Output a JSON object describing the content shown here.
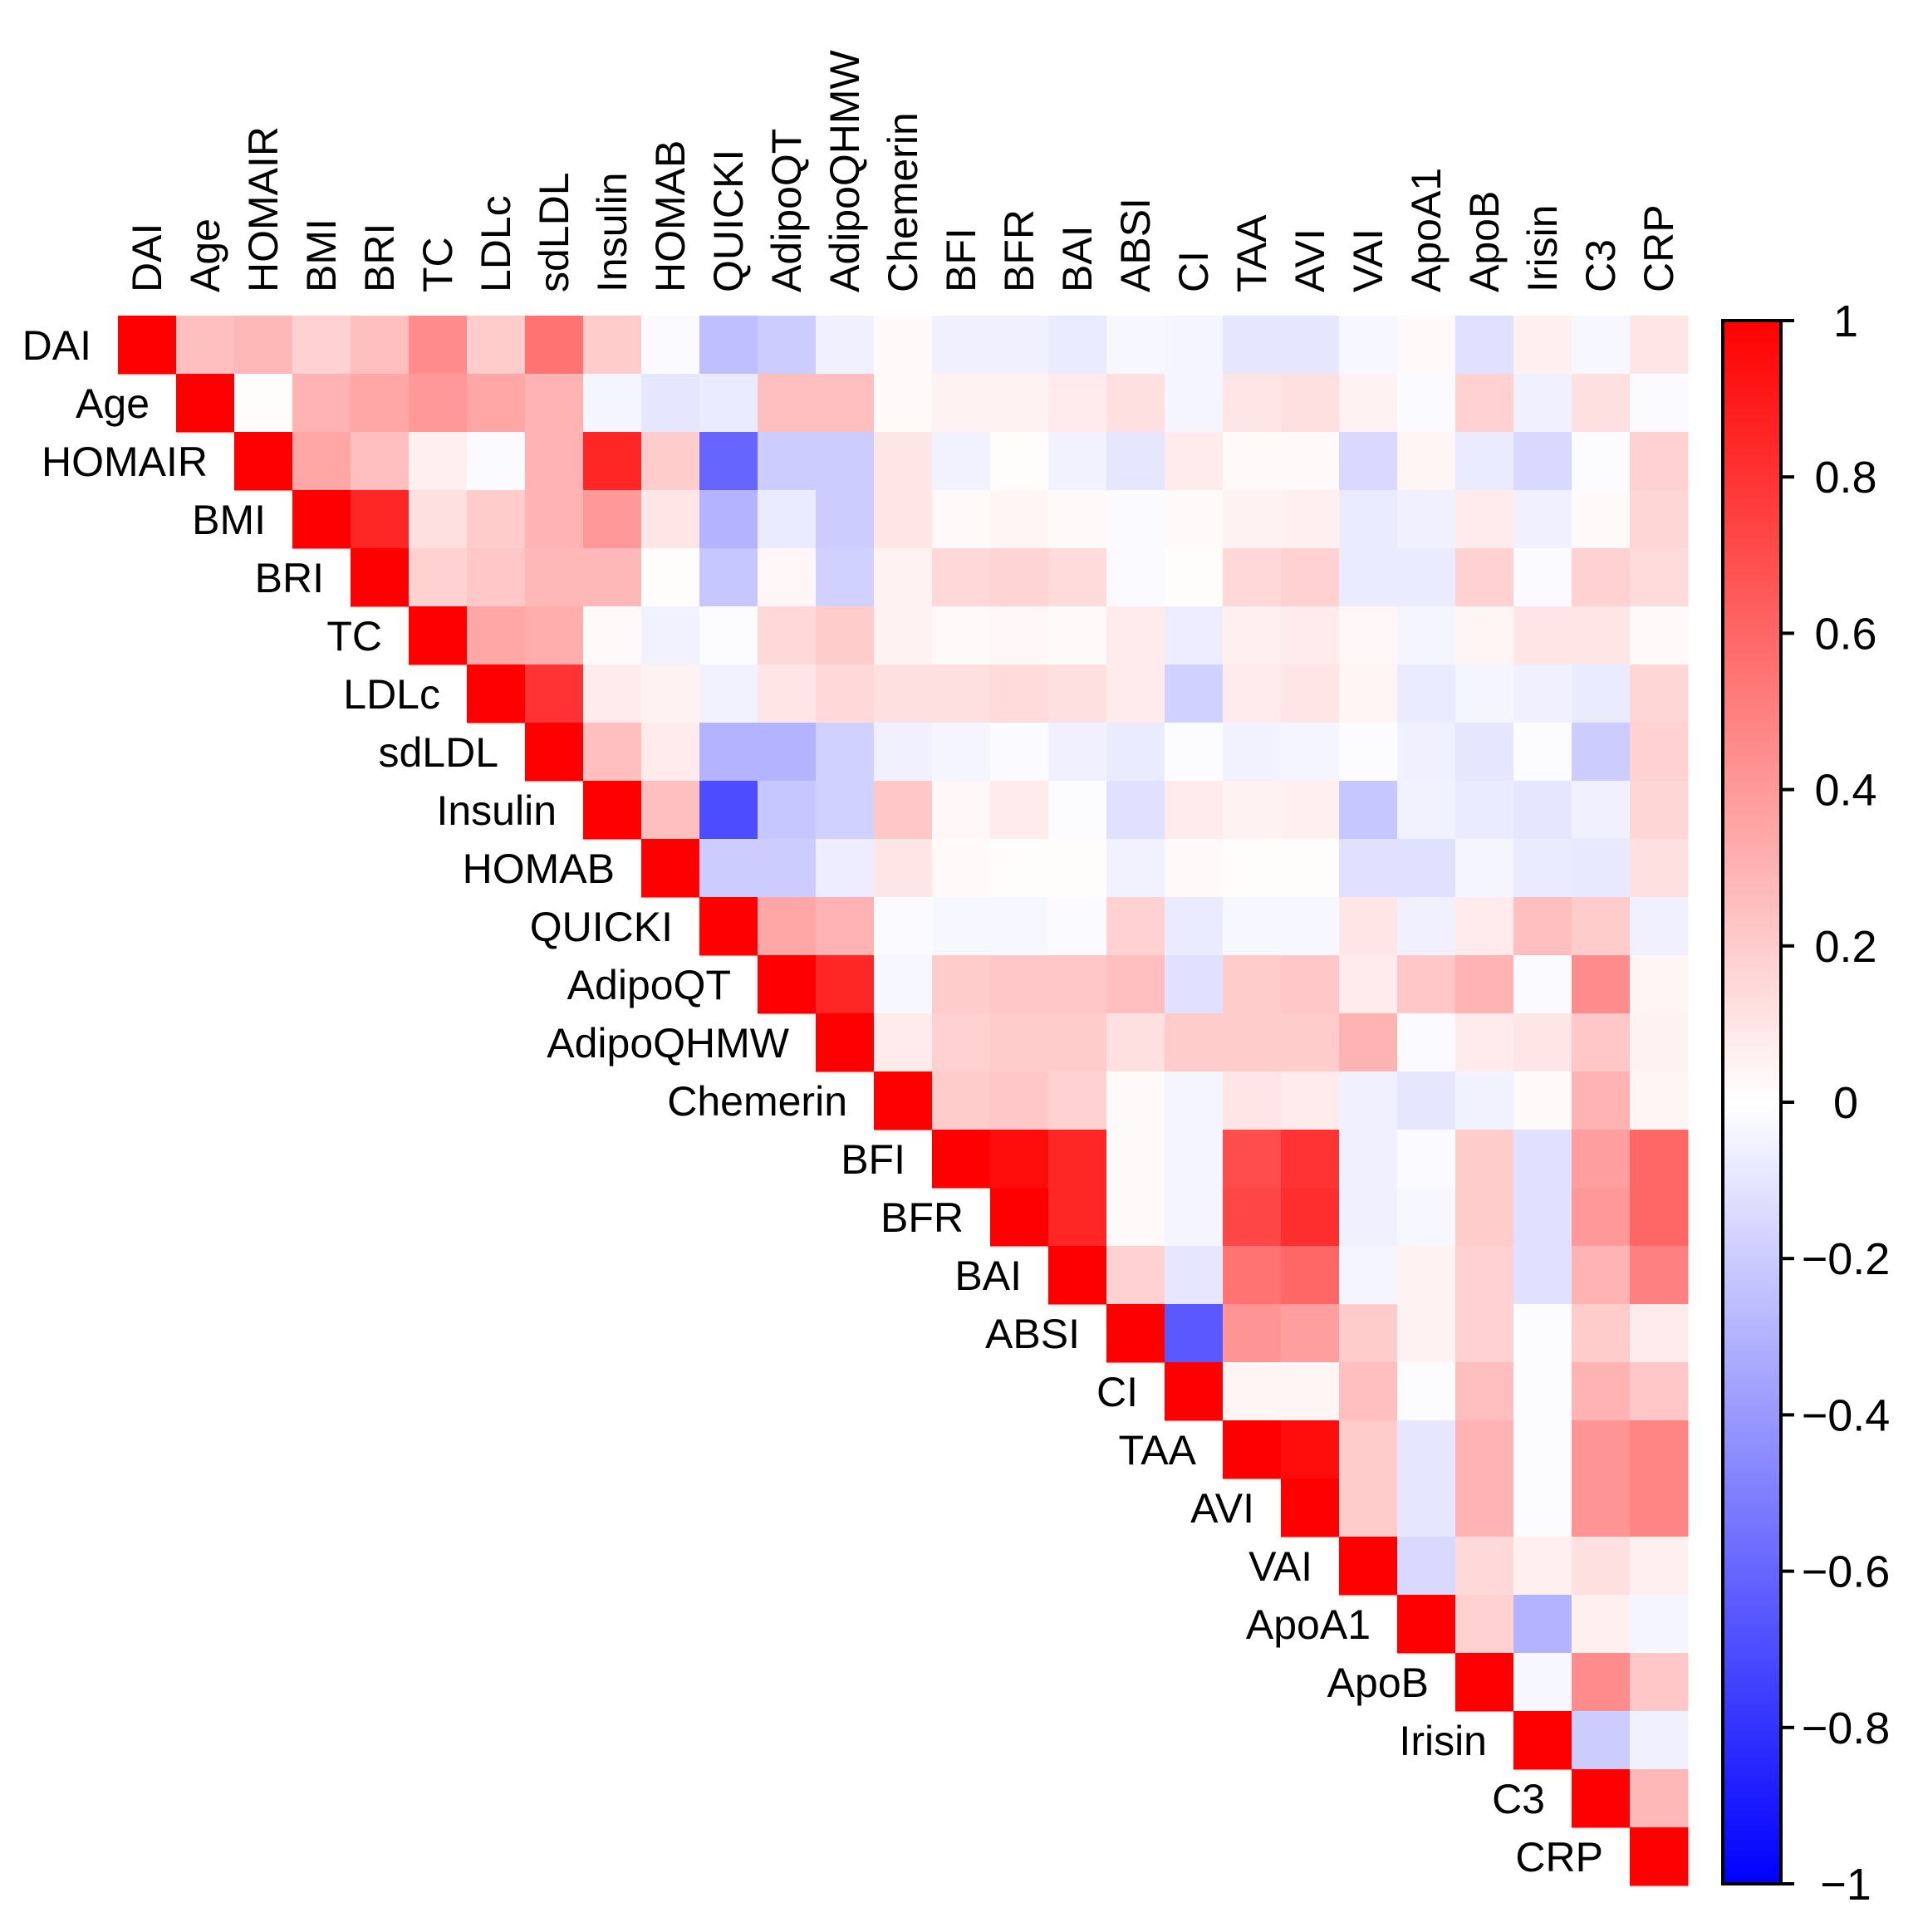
{
  "chart_data": {
    "type": "heatmap",
    "title": "",
    "variables": [
      "DAI",
      "Age",
      "HOMAIR",
      "BMI",
      "BRI",
      "TC",
      "LDLc",
      "sdLDL",
      "Insulin",
      "HOMAB",
      "QUICKI",
      "AdipoQT",
      "AdipoQHMW",
      "Chemerin",
      "BFI",
      "BFR",
      "BAI",
      "ABSI",
      "CI",
      "TAA",
      "AVI",
      "VAI",
      "ApoA1",
      "ApoB",
      "Irisin",
      "C3",
      "CRP"
    ],
    "triangle": "upper",
    "matrix": [
      [
        1,
        0.25,
        0.28,
        0.18,
        0.25,
        0.45,
        0.2,
        0.55,
        0.2,
        -0.02,
        -0.25,
        -0.2,
        -0.06,
        0.02,
        -0.06,
        -0.06,
        -0.08,
        -0.03,
        -0.04,
        -0.1,
        -0.1,
        -0.03,
        0.02,
        -0.12,
        0.06,
        -0.03,
        0.1
      ],
      [
        null,
        1,
        0.01,
        0.3,
        0.35,
        0.4,
        0.35,
        0.3,
        -0.04,
        -0.1,
        -0.08,
        0.25,
        0.25,
        0.02,
        0.05,
        0.05,
        0.08,
        0.12,
        -0.04,
        0.1,
        0.12,
        0.05,
        -0.02,
        0.18,
        -0.06,
        0.12,
        -0.02
      ],
      [
        null,
        null,
        1,
        0.35,
        0.25,
        0.06,
        -0.02,
        0.3,
        0.85,
        0.2,
        -0.6,
        -0.2,
        -0.2,
        0.1,
        -0.05,
        0.01,
        -0.05,
        -0.1,
        0.08,
        0.02,
        0.02,
        -0.15,
        0.04,
        -0.08,
        -0.15,
        -0.01,
        0.18
      ],
      [
        null,
        null,
        null,
        1,
        0.85,
        0.12,
        0.2,
        0.3,
        0.4,
        0.1,
        -0.3,
        -0.08,
        -0.2,
        0.1,
        0.02,
        0.04,
        0.02,
        -0.02,
        0.02,
        0.05,
        0.06,
        -0.08,
        -0.06,
        0.08,
        -0.06,
        0.02,
        0.16
      ],
      [
        null,
        null,
        null,
        null,
        1,
        0.18,
        0.22,
        0.28,
        0.28,
        0.01,
        -0.22,
        0.03,
        -0.18,
        0.05,
        0.15,
        0.17,
        0.14,
        -0.02,
        0.01,
        0.15,
        0.18,
        -0.08,
        -0.08,
        0.18,
        -0.02,
        0.18,
        0.14
      ],
      [
        null,
        null,
        null,
        null,
        null,
        1,
        0.35,
        0.32,
        0.02,
        -0.05,
        -0.01,
        0.15,
        0.2,
        0.05,
        0.02,
        0.03,
        0.02,
        0.08,
        -0.07,
        0.06,
        0.08,
        0.03,
        -0.04,
        0.04,
        0.1,
        0.1,
        0.02
      ],
      [
        null,
        null,
        null,
        null,
        null,
        null,
        1,
        0.8,
        0.08,
        0.05,
        -0.05,
        0.1,
        0.15,
        0.12,
        0.12,
        0.14,
        0.12,
        0.08,
        -0.18,
        0.08,
        0.1,
        0.04,
        -0.08,
        -0.04,
        -0.06,
        -0.08,
        0.16
      ],
      [
        null,
        null,
        null,
        null,
        null,
        null,
        null,
        1,
        0.25,
        0.08,
        -0.3,
        -0.3,
        -0.18,
        -0.06,
        -0.04,
        -0.02,
        -0.06,
        -0.08,
        -0.01,
        -0.05,
        -0.04,
        -0.01,
        -0.06,
        -0.1,
        -0.01,
        -0.2,
        0.18
      ],
      [
        null,
        null,
        null,
        null,
        null,
        null,
        null,
        null,
        1,
        0.25,
        -0.7,
        -0.22,
        -0.18,
        0.22,
        0.03,
        0.08,
        -0.01,
        -0.12,
        0.08,
        0.05,
        0.06,
        -0.22,
        -0.05,
        -0.08,
        -0.1,
        -0.06,
        0.16
      ],
      [
        null,
        null,
        null,
        null,
        null,
        null,
        null,
        null,
        null,
        1,
        -0.2,
        -0.2,
        -0.07,
        0.1,
        0.02,
        0.01,
        0.01,
        -0.05,
        0.02,
        0.01,
        0.01,
        -0.12,
        -0.12,
        -0.04,
        -0.08,
        -0.09,
        0.12
      ],
      [
        null,
        null,
        null,
        null,
        null,
        null,
        null,
        null,
        null,
        null,
        1,
        0.35,
        0.3,
        -0.02,
        -0.03,
        -0.03,
        -0.02,
        0.18,
        -0.08,
        -0.03,
        -0.03,
        0.1,
        -0.06,
        0.08,
        0.25,
        0.2,
        -0.06
      ],
      [
        null,
        null,
        null,
        null,
        null,
        null,
        null,
        null,
        null,
        null,
        null,
        1,
        0.85,
        -0.03,
        0.2,
        0.22,
        0.22,
        0.25,
        -0.12,
        0.2,
        0.22,
        0.08,
        0.22,
        0.3,
        -0.02,
        0.45,
        0.04
      ],
      [
        null,
        null,
        null,
        null,
        null,
        null,
        null,
        null,
        null,
        null,
        null,
        null,
        1,
        0.08,
        0.18,
        0.2,
        0.2,
        0.12,
        0.2,
        0.2,
        0.2,
        0.3,
        -0.02,
        0.08,
        0.1,
        0.22,
        0.05
      ],
      [
        null,
        null,
        null,
        null,
        null,
        null,
        null,
        null,
        null,
        null,
        null,
        null,
        null,
        1,
        0.2,
        0.22,
        0.18,
        0.02,
        -0.04,
        0.1,
        0.08,
        -0.06,
        -0.1,
        -0.05,
        0.02,
        0.3,
        0.04
      ],
      [
        null,
        null,
        null,
        null,
        null,
        null,
        null,
        null,
        null,
        null,
        null,
        null,
        null,
        null,
        1,
        0.95,
        0.85,
        0.02,
        -0.04,
        0.7,
        0.8,
        -0.06,
        -0.02,
        0.2,
        -0.12,
        0.38,
        0.6
      ],
      [
        null,
        null,
        null,
        null,
        null,
        null,
        null,
        null,
        null,
        null,
        null,
        null,
        null,
        null,
        null,
        1,
        0.85,
        0.02,
        -0.04,
        0.72,
        0.82,
        -0.06,
        -0.03,
        0.2,
        -0.12,
        0.4,
        0.6
      ],
      [
        null,
        null,
        null,
        null,
        null,
        null,
        null,
        null,
        null,
        null,
        null,
        null,
        null,
        null,
        null,
        null,
        1,
        0.18,
        -0.1,
        0.55,
        0.6,
        -0.04,
        0.05,
        0.18,
        -0.12,
        0.3,
        0.5
      ],
      [
        null,
        null,
        null,
        null,
        null,
        null,
        null,
        null,
        null,
        null,
        null,
        null,
        null,
        null,
        null,
        null,
        null,
        1,
        -0.65,
        0.42,
        0.38,
        0.2,
        0.05,
        0.18,
        -0.01,
        0.2,
        0.08
      ],
      [
        null,
        null,
        null,
        null,
        null,
        null,
        null,
        null,
        null,
        null,
        null,
        null,
        null,
        null,
        null,
        null,
        null,
        null,
        1,
        0.04,
        0.04,
        0.25,
        -0.01,
        0.25,
        -0.01,
        0.3,
        0.22
      ],
      [
        null,
        null,
        null,
        null,
        null,
        null,
        null,
        null,
        null,
        null,
        null,
        null,
        null,
        null,
        null,
        null,
        null,
        null,
        null,
        1,
        0.95,
        0.2,
        -0.1,
        0.3,
        -0.01,
        0.42,
        0.48
      ],
      [
        null,
        null,
        null,
        null,
        null,
        null,
        null,
        null,
        null,
        null,
        null,
        null,
        null,
        null,
        null,
        null,
        null,
        null,
        null,
        null,
        1,
        0.2,
        -0.1,
        0.3,
        -0.01,
        0.42,
        0.48
      ],
      [
        null,
        null,
        null,
        null,
        null,
        null,
        null,
        null,
        null,
        null,
        null,
        null,
        null,
        null,
        null,
        null,
        null,
        null,
        null,
        null,
        null,
        1,
        -0.15,
        0.15,
        0.06,
        0.12,
        0.06
      ],
      [
        null,
        null,
        null,
        null,
        null,
        null,
        null,
        null,
        null,
        null,
        null,
        null,
        null,
        null,
        null,
        null,
        null,
        null,
        null,
        null,
        null,
        null,
        1,
        0.18,
        -0.3,
        0.06,
        -0.04
      ],
      [
        null,
        null,
        null,
        null,
        null,
        null,
        null,
        null,
        null,
        null,
        null,
        null,
        null,
        null,
        null,
        null,
        null,
        null,
        null,
        null,
        null,
        null,
        null,
        1,
        -0.03,
        0.45,
        0.22
      ],
      [
        null,
        null,
        null,
        null,
        null,
        null,
        null,
        null,
        null,
        null,
        null,
        null,
        null,
        null,
        null,
        null,
        null,
        null,
        null,
        null,
        null,
        null,
        null,
        null,
        1,
        -0.2,
        -0.06
      ],
      [
        null,
        null,
        null,
        null,
        null,
        null,
        null,
        null,
        null,
        null,
        null,
        null,
        null,
        null,
        null,
        null,
        null,
        null,
        null,
        null,
        null,
        null,
        null,
        null,
        null,
        1,
        0.28
      ],
      [
        null,
        null,
        null,
        null,
        null,
        null,
        null,
        null,
        null,
        null,
        null,
        null,
        null,
        null,
        null,
        null,
        null,
        null,
        null,
        null,
        null,
        null,
        null,
        null,
        null,
        null,
        1
      ]
    ],
    "colorbar": {
      "range": [
        -1,
        1
      ],
      "ticks": [
        -1,
        -0.8,
        -0.6,
        -0.4,
        -0.2,
        0,
        0.2,
        0.4,
        0.6,
        0.8,
        1
      ],
      "tick_labels": [
        "−1",
        "−0.8",
        "−0.6",
        "−0.4",
        "−0.2",
        "0",
        "0.2",
        "0.4",
        "0.6",
        "0.8",
        "1"
      ],
      "colors": {
        "negative": "#0000ff",
        "zero": "#ffffff",
        "positive": "#ff0000"
      }
    },
    "xlabel": "",
    "ylabel": ""
  }
}
